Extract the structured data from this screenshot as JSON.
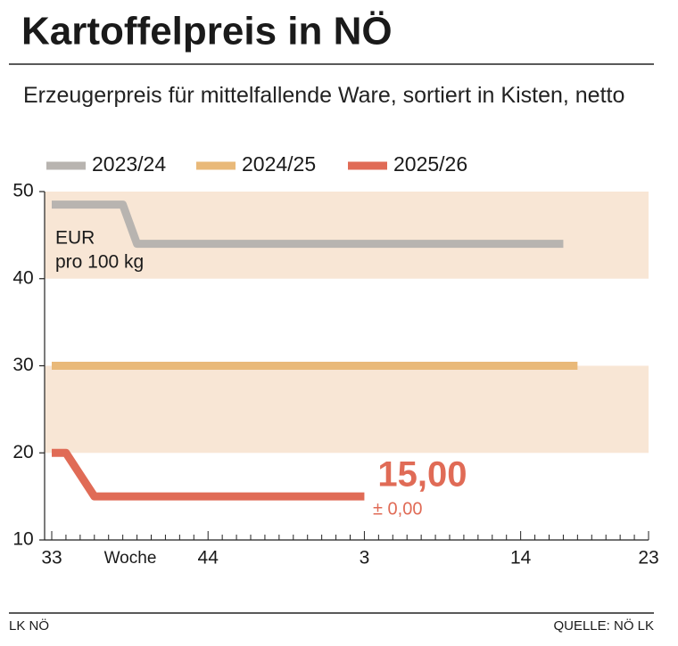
{
  "chart_data": {
    "type": "line",
    "title": "Kartoffelpreis in NÖ",
    "subtitle": "Erzeugerpreis für mittelfallende Ware, sortiert in Kisten, netto",
    "y_label": [
      "EUR",
      "pro 100 kg"
    ],
    "x_label": "Woche",
    "categories": [
      "33",
      null,
      null,
      null,
      null,
      null,
      null,
      null,
      null,
      null,
      null,
      "44",
      null,
      null,
      null,
      null,
      null,
      null,
      null,
      null,
      null,
      null,
      "3",
      null,
      null,
      null,
      null,
      null,
      null,
      null,
      null,
      null,
      null,
      "14",
      null,
      null,
      null,
      null,
      null,
      null,
      null,
      null,
      "23"
    ],
    "series": [
      {
        "name": "2023/24",
        "color": "#b8b4b0",
        "values": [
          48.5,
          48.5,
          48.5,
          48.5,
          48.5,
          48.5,
          44,
          44,
          44,
          44,
          44,
          44,
          44,
          44,
          44,
          44,
          44,
          44,
          44,
          44,
          44,
          44,
          44,
          44,
          44,
          44,
          44,
          44,
          44,
          44,
          44,
          44,
          44,
          44,
          44,
          44,
          44,
          null,
          null,
          null,
          null,
          null,
          null
        ]
      },
      {
        "name": "2024/25",
        "color": "#e9b979",
        "values": [
          30,
          30,
          30,
          30,
          30,
          30,
          30,
          30,
          30,
          30,
          30,
          30,
          30,
          30,
          30,
          30,
          30,
          30,
          30,
          30,
          30,
          30,
          30,
          30,
          30,
          30,
          30,
          30,
          30,
          30,
          30,
          30,
          30,
          30,
          30,
          30,
          30,
          30,
          null,
          null,
          null,
          null,
          null
        ]
      },
      {
        "name": "2025/26",
        "color": "#e06b56",
        "values": [
          20,
          20,
          17.5,
          15,
          15,
          15,
          15,
          15,
          15,
          15,
          15,
          15,
          15,
          15,
          15,
          15,
          15,
          15,
          15,
          15,
          15,
          15,
          15,
          null,
          null,
          null,
          null,
          null,
          null,
          null,
          null,
          null,
          null,
          null,
          null,
          null,
          null,
          null,
          null,
          null,
          null,
          null,
          null
        ],
        "value_labels": [
          null,
          null,
          null,
          null,
          null,
          null,
          null,
          null,
          null,
          null,
          null,
          null,
          null,
          null,
          null,
          null,
          null,
          null,
          null,
          null,
          null,
          null,
          "15,00",
          null,
          null,
          null,
          null,
          null,
          null,
          null,
          null,
          null,
          null,
          null,
          null,
          null,
          null,
          null,
          null,
          null,
          null,
          null,
          null
        ]
      }
    ],
    "annotations": [
      "± 0,00"
    ],
    "ylim": [
      10,
      50
    ],
    "yticks": [
      10,
      20,
      30,
      40,
      50
    ],
    "band_color": "#f8e6d5",
    "footer_left": "LK NÖ",
    "footer_right": "QUELLE: NÖ LK"
  }
}
